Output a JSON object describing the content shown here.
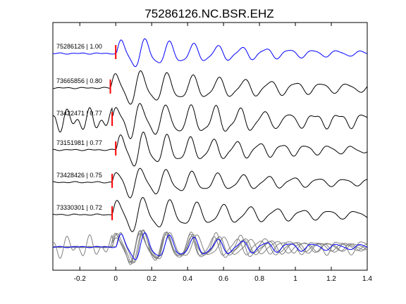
{
  "chart_data": {
    "type": "line",
    "title": "75286126.NC.BSR.EHZ",
    "xlabel": "",
    "ylabel": "",
    "xlim": [
      -0.35,
      1.4
    ],
    "xticks": [
      -0.2,
      0,
      0.2,
      0.4,
      0.6,
      0.8,
      1,
      1.2,
      1.4
    ],
    "xtick_labels": [
      "-0.2",
      "0",
      "0.2",
      "0.4",
      "0.6",
      "0.8",
      "1",
      "1.2",
      "1.4"
    ],
    "grid": false,
    "legend": "none",
    "pick_marker_color": "#ff0000",
    "stack_panel": "overlay of all traces at bottom",
    "series": [
      {
        "label": "75286126 | 1.00",
        "color": "#0000ff",
        "pick_time": 0.0,
        "amplitude": 0.42,
        "freq": 7.5,
        "decay": 1.4,
        "phase": 0.0,
        "pre_noise": 0.02
      },
      {
        "label": "73665856 | 0.80",
        "color": "#000000",
        "pick_time": -0.03,
        "amplitude": 0.48,
        "freq": 7.0,
        "decay": 1.1,
        "phase": 0.6,
        "pre_noise": 0.02
      },
      {
        "label": "73422471 | 0.77",
        "color": "#000000",
        "pick_time": -0.02,
        "amplitude": 0.5,
        "freq": 7.3,
        "decay": 0.9,
        "phase": 1.2,
        "pre_noise": 0.35
      },
      {
        "label": "73151981 | 0.77",
        "color": "#000000",
        "pick_time": 0.0,
        "amplitude": 0.5,
        "freq": 7.8,
        "decay": 1.3,
        "phase": 0.3,
        "pre_noise": 0.02
      },
      {
        "label": "73428426 | 0.75",
        "color": "#000000",
        "pick_time": -0.02,
        "amplitude": 0.42,
        "freq": 7.1,
        "decay": 1.2,
        "phase": 1.8,
        "pre_noise": 0.02
      },
      {
        "label": "73330301 | 0.72",
        "color": "#000000",
        "pick_time": -0.02,
        "amplitude": 0.5,
        "freq": 6.8,
        "decay": 1.25,
        "phase": 0.9,
        "pre_noise": 0.02
      }
    ]
  }
}
